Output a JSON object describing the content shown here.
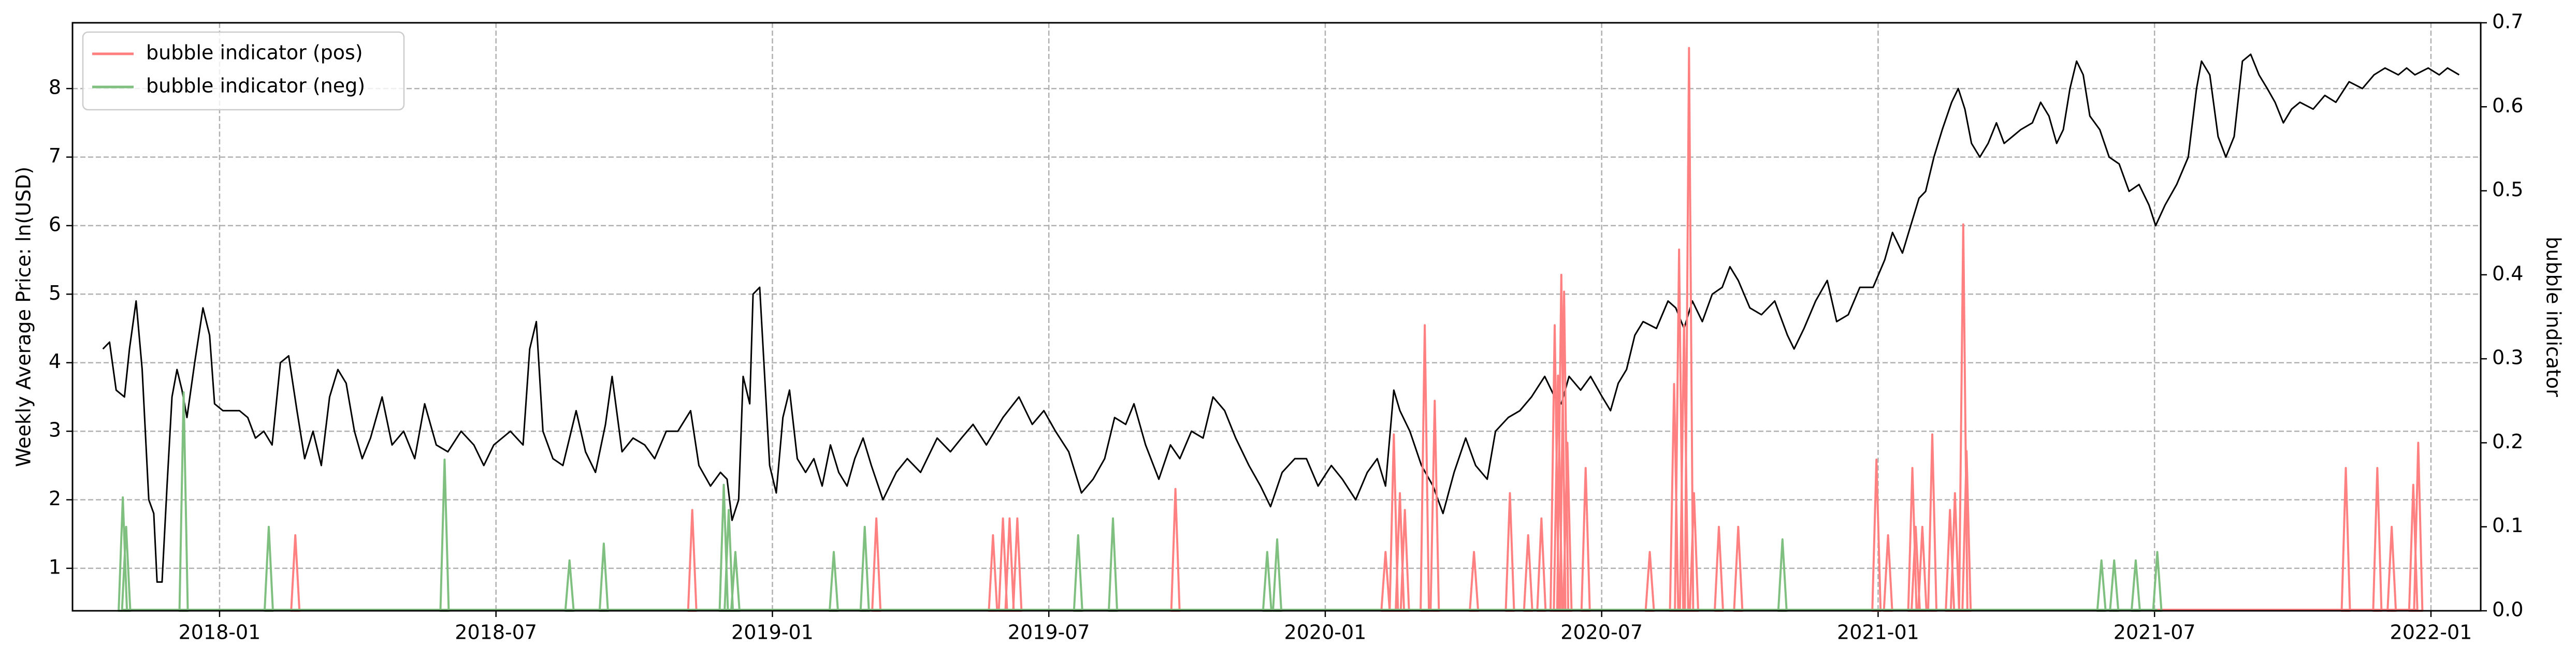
{
  "chart_data": {
    "type": "line",
    "y_label": "Weekly Average Price: ln(USD)",
    "y2_label": "bubble indicator",
    "xlim": [
      2017.734,
      2022.09
    ],
    "xticks": [
      {
        "value": 2018.0,
        "label": "2018-01"
      },
      {
        "value": 2018.5,
        "label": "2018-07"
      },
      {
        "value": 2019.0,
        "label": "2019-01"
      },
      {
        "value": 2019.5,
        "label": "2019-07"
      },
      {
        "value": 2020.0,
        "label": "2020-01"
      },
      {
        "value": 2020.5,
        "label": "2020-07"
      },
      {
        "value": 2021.0,
        "label": "2021-01"
      },
      {
        "value": 2021.5,
        "label": "2021-07"
      },
      {
        "value": 2022.0,
        "label": "2022-01"
      }
    ],
    "ylim": [
      0.38,
      8.96
    ],
    "yticks": [
      1,
      2,
      3,
      4,
      5,
      6,
      7,
      8
    ],
    "y2lim": [
      0,
      0.7
    ],
    "y2ticks": [
      {
        "value": 0,
        "label": "0.0"
      },
      0.1,
      0.2,
      0.3,
      0.4,
      0.5,
      0.6,
      0.7
    ],
    "grid": true,
    "legend": "upper left",
    "series": [
      {
        "color": "#000000",
        "x": [
          2017.789,
          2017.801,
          2017.813,
          2017.828,
          2017.837,
          2017.849,
          2017.86,
          2017.872,
          2017.881,
          2017.887,
          2017.896,
          2017.905,
          2017.914,
          2017.923,
          2017.932,
          2017.941,
          2017.955,
          2017.97,
          2017.982,
          2017.991,
          2018.006,
          2018.036,
          2018.051,
          2018.065,
          2018.08,
          2018.095,
          2018.11,
          2018.125,
          2018.14,
          2018.154,
          2018.169,
          2018.184,
          2018.199,
          2018.214,
          2018.229,
          2018.244,
          2018.258,
          2018.273,
          2018.294,
          2018.312,
          2018.333,
          2018.353,
          2018.371,
          2018.392,
          2018.413,
          2018.437,
          2018.46,
          2018.478,
          2018.496,
          2018.526,
          2018.549,
          2018.561,
          2018.573,
          2018.585,
          2018.603,
          2018.621,
          2018.645,
          2018.662,
          2018.68,
          2018.698,
          2018.71,
          2018.728,
          2018.748,
          2018.769,
          2018.787,
          2018.808,
          2018.829,
          2018.852,
          2018.867,
          2018.888,
          2018.906,
          2018.918,
          2018.927,
          2018.939,
          2018.947,
          2018.959,
          2018.965,
          2018.977,
          2018.986,
          2018.995,
          2019.007,
          2019.019,
          2019.031,
          2019.045,
          2019.06,
          2019.075,
          2019.09,
          2019.105,
          2019.12,
          2019.135,
          2019.149,
          2019.164,
          2019.179,
          2019.2,
          2019.224,
          2019.244,
          2019.268,
          2019.298,
          2019.322,
          2019.342,
          2019.363,
          2019.387,
          2019.417,
          2019.446,
          2019.47,
          2019.491,
          2019.512,
          2019.536,
          2019.559,
          2019.58,
          2019.601,
          2019.619,
          2019.639,
          2019.654,
          2019.675,
          2019.699,
          2019.72,
          2019.737,
          2019.758,
          2019.779,
          2019.797,
          2019.818,
          2019.838,
          2019.862,
          2019.883,
          2019.901,
          2019.922,
          2019.945,
          2019.966,
          2019.987,
          2020.011,
          2020.031,
          2020.055,
          2020.076,
          2020.094,
          2020.109,
          2020.124,
          2020.135,
          2020.153,
          2020.174,
          2020.195,
          2020.213,
          2020.233,
          2020.254,
          2020.272,
          2020.293,
          2020.308,
          2020.331,
          2020.352,
          2020.373,
          2020.397,
          2020.415,
          2020.427,
          2020.441,
          2020.462,
          2020.48,
          2020.501,
          2020.516,
          2020.53,
          2020.545,
          2020.56,
          2020.575,
          2020.599,
          2020.62,
          2020.634,
          2020.649,
          2020.664,
          2020.682,
          2020.7,
          2020.718,
          2020.732,
          2020.747,
          2020.768,
          2020.789,
          2020.813,
          2020.836,
          2020.848,
          2020.866,
          2020.887,
          2020.908,
          2020.925,
          2020.946,
          2020.967,
          2020.991,
          2021.012,
          2021.026,
          2021.044,
          2021.059,
          2021.074,
          2021.086,
          2021.101,
          2021.116,
          2021.133,
          2021.145,
          2021.157,
          2021.169,
          2021.184,
          2021.199,
          2021.214,
          2021.228,
          2021.243,
          2021.258,
          2021.279,
          2021.294,
          2021.309,
          2021.323,
          2021.335,
          2021.347,
          2021.359,
          2021.371,
          2021.383,
          2021.401,
          2021.418,
          2021.436,
          2021.454,
          2021.472,
          2021.49,
          2021.502,
          2021.519,
          2021.54,
          2021.561,
          2021.576,
          2021.585,
          2021.6,
          2021.615,
          2021.629,
          2021.644,
          2021.659,
          2021.674,
          2021.689,
          2021.704,
          2021.718,
          2021.733,
          2021.748,
          2021.763,
          2021.787,
          2021.808,
          2021.828,
          2021.852,
          2021.876,
          2021.897,
          2021.917,
          2021.941,
          2021.956,
          2021.971,
          2021.995,
          2022.015,
          2022.03,
          2022.051
        ],
        "values": [
          4.2,
          4.3,
          3.6,
          3.5,
          4.2,
          4.9,
          3.9,
          2.0,
          1.8,
          0.8,
          0.8,
          2.2,
          3.5,
          3.9,
          3.6,
          3.2,
          4.0,
          4.8,
          4.4,
          3.4,
          3.3,
          3.3,
          3.2,
          2.9,
          3.0,
          2.8,
          4.0,
          4.1,
          3.3,
          2.6,
          3.0,
          2.5,
          3.5,
          3.9,
          3.7,
          3.0,
          2.6,
          2.9,
          3.5,
          2.8,
          3.0,
          2.6,
          3.4,
          2.8,
          2.7,
          3.0,
          2.8,
          2.5,
          2.8,
          3.0,
          2.8,
          4.2,
          4.6,
          3.0,
          2.6,
          2.5,
          3.3,
          2.7,
          2.4,
          3.1,
          3.8,
          2.7,
          2.9,
          2.8,
          2.6,
          3.0,
          3.0,
          3.3,
          2.5,
          2.2,
          2.4,
          2.3,
          1.7,
          2.0,
          3.8,
          3.4,
          5.0,
          5.1,
          3.8,
          2.5,
          2.1,
          3.2,
          3.6,
          2.6,
          2.4,
          2.6,
          2.2,
          2.8,
          2.4,
          2.2,
          2.6,
          2.9,
          2.5,
          2.0,
          2.4,
          2.6,
          2.4,
          2.9,
          2.7,
          2.9,
          3.1,
          2.8,
          3.2,
          3.5,
          3.1,
          3.3,
          3.0,
          2.7,
          2.1,
          2.3,
          2.6,
          3.2,
          3.1,
          3.4,
          2.8,
          2.3,
          2.8,
          2.6,
          3.0,
          2.9,
          3.5,
          3.3,
          2.9,
          2.5,
          2.2,
          1.9,
          2.4,
          2.6,
          2.6,
          2.2,
          2.5,
          2.3,
          2.0,
          2.4,
          2.6,
          2.2,
          3.6,
          3.3,
          3.0,
          2.5,
          2.2,
          1.8,
          2.4,
          2.9,
          2.5,
          2.3,
          3.0,
          3.2,
          3.3,
          3.5,
          3.8,
          3.5,
          3.4,
          3.8,
          3.6,
          3.8,
          3.5,
          3.3,
          3.7,
          3.9,
          4.4,
          4.6,
          4.5,
          4.9,
          4.8,
          4.5,
          4.9,
          4.6,
          5.0,
          5.1,
          5.4,
          5.2,
          4.8,
          4.7,
          4.9,
          4.4,
          4.2,
          4.5,
          4.9,
          5.2,
          4.6,
          4.7,
          5.1,
          5.1,
          5.5,
          5.9,
          5.6,
          6.0,
          6.4,
          6.5,
          7.0,
          7.4,
          7.8,
          8.0,
          7.7,
          7.2,
          7.0,
          7.2,
          7.5,
          7.2,
          7.3,
          7.4,
          7.5,
          7.8,
          7.6,
          7.2,
          7.4,
          8.0,
          8.4,
          8.2,
          7.6,
          7.4,
          7.0,
          6.9,
          6.5,
          6.6,
          6.3,
          6.0,
          6.3,
          6.6,
          7.0,
          8.0,
          8.4,
          8.2,
          7.3,
          7.0,
          7.3,
          8.4,
          8.5,
          8.2,
          8.0,
          7.8,
          7.5,
          7.7,
          7.8,
          7.7,
          7.9,
          7.8,
          8.1,
          8.0,
          8.2,
          8.3,
          8.2,
          8.3,
          8.2,
          8.3,
          8.2,
          8.3,
          8.2
        ]
      },
      {
        "name": "bubble indicator (pos)",
        "color": "#ff8080",
        "axis": "y2",
        "x": [
          2018.137,
          2018.855,
          2019.188,
          2019.399,
          2019.417,
          2019.429,
          2019.443,
          2019.729,
          2020.109,
          2020.124,
          2020.135,
          2020.144,
          2020.18,
          2020.198,
          2020.269,
          2020.334,
          2020.367,
          2020.391,
          2020.415,
          2020.421,
          2020.427,
          2020.432,
          2020.438,
          2020.471,
          2020.587,
          2020.631,
          2020.64,
          2020.649,
          2020.658,
          2020.667,
          2020.712,
          2020.747,
          2020.997,
          2021.018,
          2021.062,
          2021.068,
          2021.08,
          2021.098,
          2021.13,
          2021.139,
          2021.154,
          2021.16,
          2021.846,
          2021.903,
          2021.929,
          2021.968,
          2021.977
        ],
        "values": [
          0.09,
          0.12,
          0.11,
          0.09,
          0.11,
          0.11,
          0.11,
          0.145,
          0.07,
          0.21,
          0.14,
          0.12,
          0.34,
          0.25,
          0.07,
          0.14,
          0.09,
          0.11,
          0.34,
          0.28,
          0.4,
          0.38,
          0.2,
          0.17,
          0.07,
          0.27,
          0.43,
          0.34,
          0.67,
          0.14,
          0.1,
          0.1,
          0.18,
          0.09,
          0.17,
          0.1,
          0.1,
          0.21,
          0.12,
          0.14,
          0.46,
          0.19,
          0.17,
          0.17,
          0.1,
          0.15,
          0.2
        ]
      },
      {
        "name": "bubble indicator (neg)",
        "color": "#7fbf7f",
        "axis": "y2",
        "x": [
          2017.825,
          2017.831,
          2017.935,
          2018.089,
          2018.407,
          2018.633,
          2018.695,
          2018.912,
          2018.921,
          2018.933,
          2019.111,
          2019.167,
          2019.553,
          2019.616,
          2019.895,
          2019.913,
          2020.827,
          2021.404,
          2021.427,
          2021.466,
          2021.505
        ],
        "values": [
          0.135,
          0.1,
          0.26,
          0.1,
          0.18,
          0.06,
          0.08,
          0.15,
          0.12,
          0.07,
          0.07,
          0.1,
          0.09,
          0.11,
          0.07,
          0.085,
          0.085,
          0.06,
          0.06,
          0.06,
          0.07
        ]
      }
    ]
  }
}
